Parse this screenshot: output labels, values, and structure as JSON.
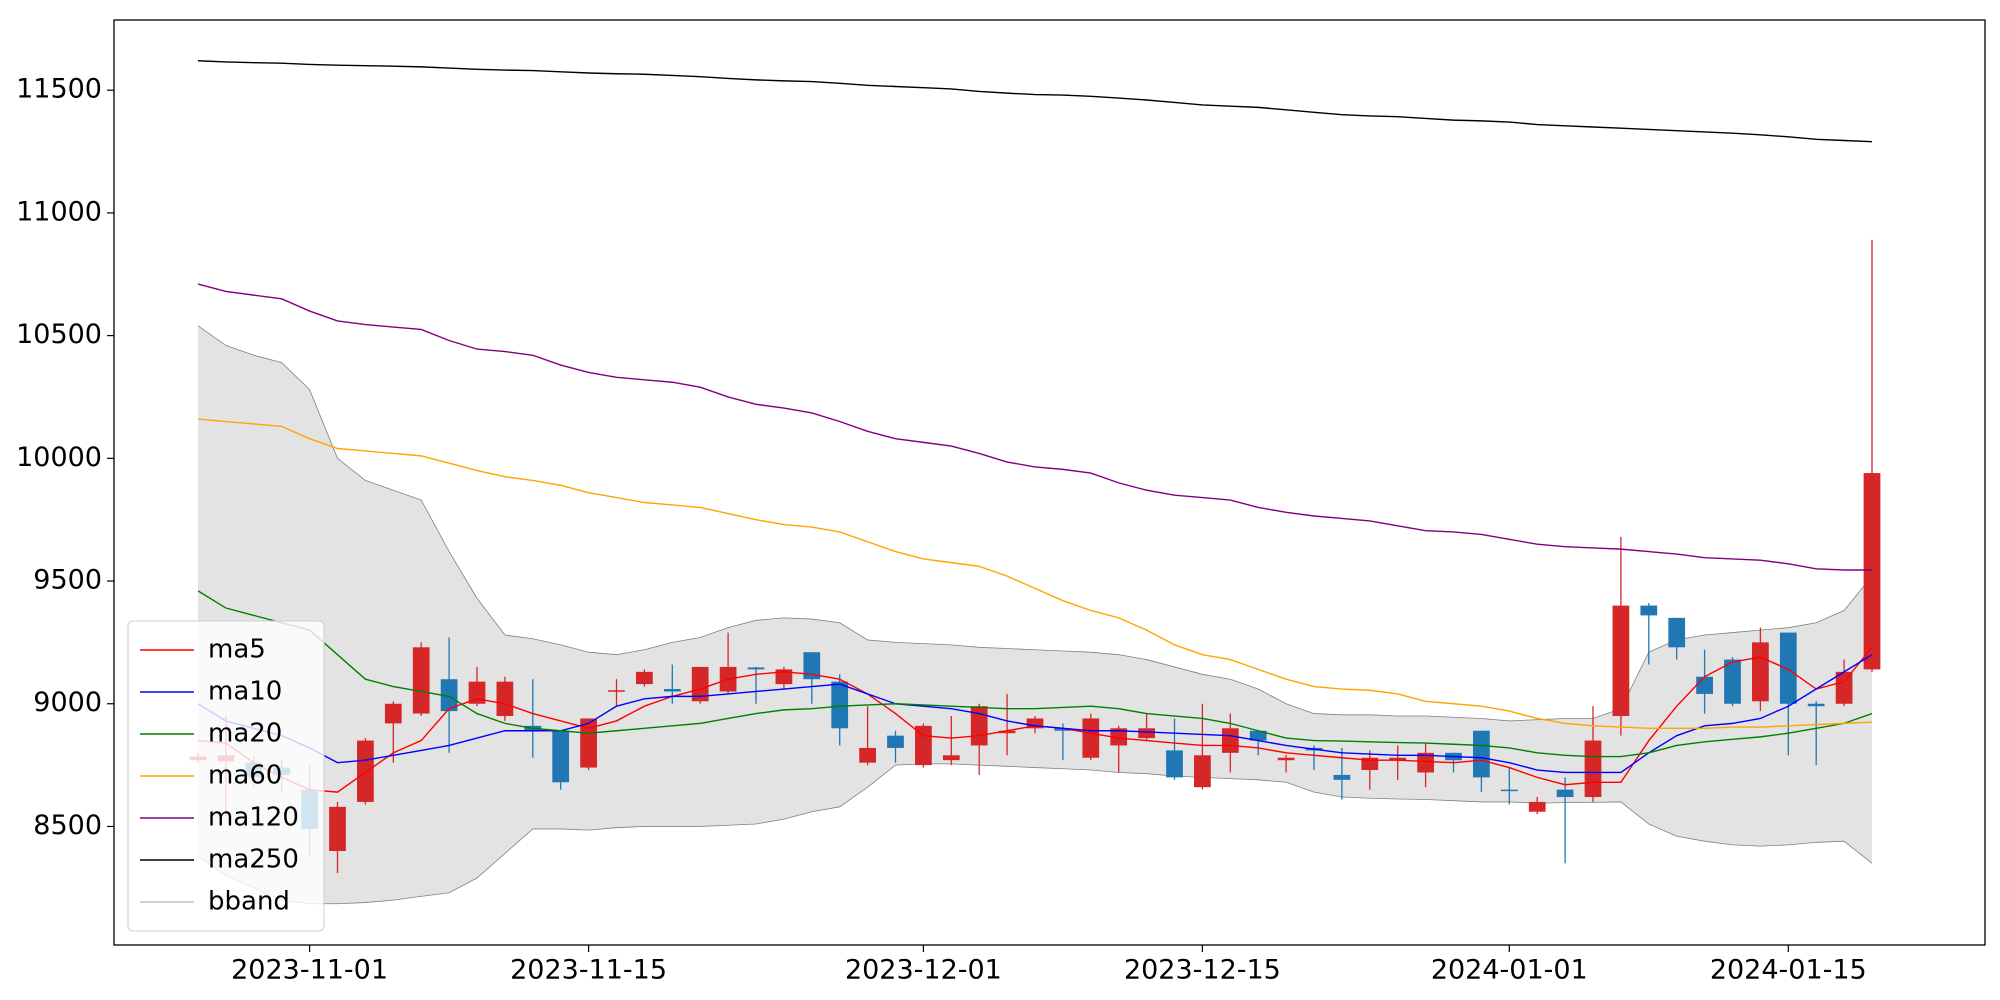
{
  "chart_data": {
    "type": "candlestick",
    "x": [
      "2023-10-26",
      "2023-10-27",
      "2023-10-30",
      "2023-10-31",
      "2023-11-01",
      "2023-11-02",
      "2023-11-03",
      "2023-11-06",
      "2023-11-07",
      "2023-11-08",
      "2023-11-09",
      "2023-11-10",
      "2023-11-13",
      "2023-11-14",
      "2023-11-15",
      "2023-11-16",
      "2023-11-17",
      "2023-11-20",
      "2023-11-21",
      "2023-11-22",
      "2023-11-23",
      "2023-11-24",
      "2023-11-27",
      "2023-11-28",
      "2023-11-29",
      "2023-11-30",
      "2023-12-01",
      "2023-12-04",
      "2023-12-05",
      "2023-12-06",
      "2023-12-07",
      "2023-12-08",
      "2023-12-11",
      "2023-12-12",
      "2023-12-13",
      "2023-12-14",
      "2023-12-15",
      "2023-12-18",
      "2023-12-19",
      "2023-12-20",
      "2023-12-21",
      "2023-12-22",
      "2023-12-25",
      "2023-12-26",
      "2023-12-27",
      "2023-12-28",
      "2023-12-29",
      "2024-01-01",
      "2024-01-02",
      "2024-01-03",
      "2024-01-04",
      "2024-01-05",
      "2024-01-08",
      "2024-01-09",
      "2024-01-10",
      "2024-01-11",
      "2024-01-12",
      "2024-01-15",
      "2024-01-16",
      "2024-01-17",
      "2024-01-18"
    ],
    "open": [
      8770,
      8765,
      8760,
      8740,
      8650,
      8400,
      8600,
      8920,
      8960,
      9100,
      9000,
      8950,
      8910,
      8890,
      8740,
      9050,
      9080,
      9060,
      9010,
      9050,
      9148,
      9080,
      9210,
      9090,
      8760,
      8870,
      8750,
      8770,
      8830,
      8880,
      8900,
      8900,
      8780,
      8830,
      8860,
      8810,
      8660,
      8800,
      8890,
      8770,
      8820,
      8710,
      8730,
      8770,
      8720,
      8800,
      8890,
      8650,
      8560,
      8650,
      8620,
      8950,
      9400,
      9350,
      9110,
      9180,
      9010,
      9290,
      9000,
      9000,
      9140
    ],
    "high": [
      8800,
      8950,
      8790,
      8770,
      8750,
      8600,
      8860,
      9010,
      9250,
      9270,
      9150,
      9110,
      9100,
      8890,
      8940,
      9100,
      9140,
      9160,
      9150,
      9290,
      9150,
      9150,
      9210,
      9120,
      8990,
      8890,
      8920,
      8950,
      9000,
      9040,
      8950,
      8920,
      8960,
      8910,
      8960,
      8940,
      9000,
      8960,
      8890,
      8790,
      8830,
      8820,
      8810,
      8830,
      8840,
      8800,
      8890,
      8740,
      8620,
      8700,
      8990,
      9680,
      9410,
      9350,
      9220,
      9190,
      9310,
      9290,
      9010,
      9180,
      10890
    ],
    "low": [
      8760,
      8540,
      8660,
      8640,
      8380,
      8310,
      8590,
      8760,
      8950,
      8800,
      8990,
      8930,
      8780,
      8650,
      8730,
      8990,
      9070,
      9000,
      9000,
      9040,
      9000,
      9060,
      9000,
      8830,
      8750,
      8760,
      8740,
      8750,
      8710,
      8790,
      8880,
      8770,
      8770,
      8720,
      8850,
      8690,
      8650,
      8720,
      8790,
      8720,
      8730,
      8610,
      8650,
      8690,
      8660,
      8720,
      8640,
      8590,
      8550,
      8350,
      8600,
      8870,
      9160,
      9180,
      8960,
      8990,
      8970,
      8790,
      8750,
      8990,
      9130
    ],
    "close": [
      8785,
      8790,
      8700,
      8710,
      8490,
      8580,
      8850,
      9000,
      9230,
      8970,
      9090,
      9090,
      8890,
      8680,
      8940,
      9055,
      9130,
      9050,
      9150,
      9150,
      9140,
      9140,
      9100,
      8900,
      8820,
      8820,
      8910,
      8790,
      8990,
      8890,
      8940,
      8890,
      8940,
      8900,
      8900,
      8700,
      8790,
      8900,
      8850,
      8780,
      8810,
      8690,
      8780,
      8780,
      8800,
      8770,
      8700,
      8645,
      8600,
      8620,
      8850,
      9400,
      9360,
      9230,
      9040,
      9000,
      9250,
      9000,
      8990,
      9130,
      9940
    ],
    "up_color": "#d62728",
    "down_color": "#1f77b4",
    "series": [
      {
        "name": "ma5",
        "color": "red",
        "values": [
          8850,
          8840,
          8760,
          8700,
          8650,
          8640,
          8720,
          8800,
          8850,
          8980,
          9020,
          9000,
          8960,
          8930,
          8900,
          8930,
          8990,
          9030,
          9060,
          9100,
          9120,
          9130,
          9120,
          9100,
          9040,
          8960,
          8870,
          8860,
          8870,
          8890,
          8910,
          8900,
          8880,
          8860,
          8850,
          8840,
          8830,
          8830,
          8820,
          8800,
          8790,
          8780,
          8770,
          8770,
          8765,
          8760,
          8770,
          8740,
          8700,
          8670,
          8680,
          8680,
          8850,
          8990,
          9110,
          9170,
          9190,
          9140,
          9060,
          9090,
          9230
        ]
      },
      {
        "name": "ma10",
        "color": "blue",
        "values": [
          9000,
          8930,
          8900,
          8870,
          8820,
          8760,
          8770,
          8790,
          8810,
          8830,
          8860,
          8890,
          8890,
          8890,
          8920,
          8990,
          9020,
          9030,
          9030,
          9040,
          9050,
          9060,
          9070,
          9080,
          9040,
          9000,
          8990,
          8980,
          8960,
          8930,
          8910,
          8900,
          8890,
          8890,
          8885,
          8880,
          8875,
          8870,
          8850,
          8830,
          8815,
          8800,
          8795,
          8790,
          8790,
          8785,
          8780,
          8760,
          8730,
          8720,
          8720,
          8720,
          8800,
          8870,
          8910,
          8920,
          8940,
          8990,
          9060,
          9130,
          9200
        ]
      },
      {
        "name": "ma20",
        "color": "green",
        "values": [
          9460,
          9390,
          9360,
          9330,
          9300,
          9200,
          9100,
          9070,
          9050,
          9030,
          8960,
          8920,
          8900,
          8890,
          8880,
          8890,
          8900,
          8910,
          8920,
          8940,
          8960,
          8975,
          8980,
          8990,
          8995,
          9000,
          8995,
          8990,
          8985,
          8980,
          8980,
          8985,
          8990,
          8980,
          8960,
          8950,
          8940,
          8920,
          8890,
          8860,
          8850,
          8848,
          8845,
          8842,
          8840,
          8835,
          8830,
          8820,
          8800,
          8790,
          8785,
          8785,
          8800,
          8830,
          8845,
          8855,
          8865,
          8880,
          8900,
          8920,
          8960
        ]
      },
      {
        "name": "ma60",
        "color": "orange",
        "values": [
          10160,
          10150,
          10140,
          10130,
          10080,
          10040,
          10030,
          10020,
          10010,
          9980,
          9950,
          9925,
          9910,
          9890,
          9860,
          9840,
          9820,
          9810,
          9800,
          9775,
          9750,
          9730,
          9720,
          9700,
          9660,
          9620,
          9590,
          9575,
          9560,
          9520,
          9470,
          9420,
          9380,
          9350,
          9300,
          9240,
          9200,
          9180,
          9140,
          9100,
          9070,
          9060,
          9055,
          9040,
          9010,
          9000,
          8990,
          8970,
          8940,
          8920,
          8910,
          8905,
          8900,
          8900,
          8900,
          8905,
          8905,
          8910,
          8915,
          8920,
          8925
        ]
      },
      {
        "name": "ma120",
        "color": "purple",
        "values": [
          10710,
          10680,
          10665,
          10650,
          10600,
          10560,
          10545,
          10535,
          10525,
          10480,
          10445,
          10435,
          10420,
          10380,
          10350,
          10330,
          10320,
          10310,
          10290,
          10250,
          10220,
          10205,
          10185,
          10150,
          10110,
          10080,
          10065,
          10050,
          10020,
          9985,
          9965,
          9955,
          9940,
          9900,
          9870,
          9850,
          9840,
          9830,
          9800,
          9780,
          9765,
          9755,
          9745,
          9725,
          9705,
          9700,
          9690,
          9670,
          9650,
          9640,
          9635,
          9630,
          9620,
          9610,
          9595,
          9590,
          9585,
          9570,
          9550,
          9545,
          9545
        ]
      },
      {
        "name": "ma250",
        "color": "black",
        "values": [
          11620,
          11615,
          11612,
          11610,
          11605,
          11602,
          11600,
          11598,
          11595,
          11590,
          11585,
          11582,
          11580,
          11575,
          11570,
          11567,
          11565,
          11560,
          11555,
          11548,
          11542,
          11538,
          11535,
          11528,
          11520,
          11515,
          11510,
          11505,
          11495,
          11488,
          11482,
          11480,
          11475,
          11468,
          11460,
          11450,
          11440,
          11435,
          11430,
          11420,
          11410,
          11400,
          11395,
          11392,
          11385,
          11378,
          11375,
          11370,
          11360,
          11355,
          11350,
          11345,
          11340,
          11335,
          11330,
          11325,
          11318,
          11310,
          11300,
          11295,
          11290
        ]
      }
    ],
    "band": {
      "name": "bband",
      "color": "gray",
      "fill": "#e3e3e3",
      "upper": [
        10540,
        10460,
        10420,
        10390,
        10280,
        10000,
        9910,
        9870,
        9830,
        9620,
        9430,
        9280,
        9265,
        9240,
        9210,
        9200,
        9220,
        9250,
        9270,
        9310,
        9340,
        9350,
        9345,
        9330,
        9260,
        9250,
        9245,
        9240,
        9230,
        9225,
        9220,
        9215,
        9210,
        9200,
        9180,
        9150,
        9120,
        9100,
        9060,
        9000,
        8960,
        8955,
        8955,
        8950,
        8950,
        8945,
        8940,
        8930,
        8935,
        8940,
        8940,
        8980,
        9210,
        9260,
        9280,
        9290,
        9300,
        9310,
        9330,
        9380,
        9520
      ],
      "lower": [
        8380,
        8300,
        8250,
        8200,
        8185,
        8185,
        8190,
        8200,
        8215,
        8230,
        8290,
        8390,
        8490,
        8490,
        8485,
        8495,
        8500,
        8500,
        8500,
        8505,
        8510,
        8530,
        8560,
        8580,
        8660,
        8750,
        8755,
        8755,
        8750,
        8745,
        8740,
        8735,
        8730,
        8720,
        8715,
        8705,
        8700,
        8695,
        8690,
        8680,
        8640,
        8620,
        8615,
        8612,
        8610,
        8605,
        8600,
        8600,
        8595,
        8597,
        8598,
        8600,
        8510,
        8460,
        8440,
        8425,
        8420,
        8425,
        8435,
        8440,
        8350
      ]
    },
    "ylim": [
      8017,
      11786
    ],
    "yticks": [
      8500,
      9000,
      9500,
      10000,
      10500,
      11000,
      11500
    ],
    "xticks": [
      "2023-11-01",
      "2023-11-15",
      "2023-12-01",
      "2023-12-15",
      "2024-01-01",
      "2024-01-15"
    ],
    "legend": "lower left",
    "grid": false
  }
}
